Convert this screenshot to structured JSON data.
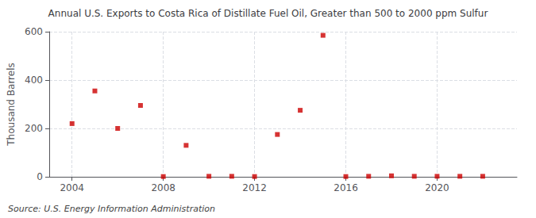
{
  "chart_data": {
    "type": "scatter",
    "title": "Annual U.S. Exports to Costa Rica of Distillate Fuel Oil, Greater than 500 to 2000 ppm Sulfur",
    "ylabel": "Thousand Barrels",
    "source": "Source: U.S. Energy Information Administration",
    "x": [
      2004,
      2005,
      2006,
      2007,
      2008,
      2009,
      2010,
      2011,
      2012,
      2013,
      2014,
      2015,
      2016,
      2017,
      2018,
      2019,
      2020,
      2021,
      2022
    ],
    "values": [
      220,
      355,
      200,
      295,
      1,
      130,
      2,
      2,
      1,
      175,
      275,
      585,
      1,
      2,
      4,
      2,
      2,
      2,
      2
    ],
    "color": "#cc0000",
    "marker": "square",
    "xlim": [
      2003.0,
      2023.5
    ],
    "xticks": [
      2004,
      2008,
      2012,
      2016,
      2020
    ],
    "ylim": [
      0,
      600
    ],
    "yticks": [
      0,
      200,
      400,
      600
    ],
    "grid": true
  }
}
